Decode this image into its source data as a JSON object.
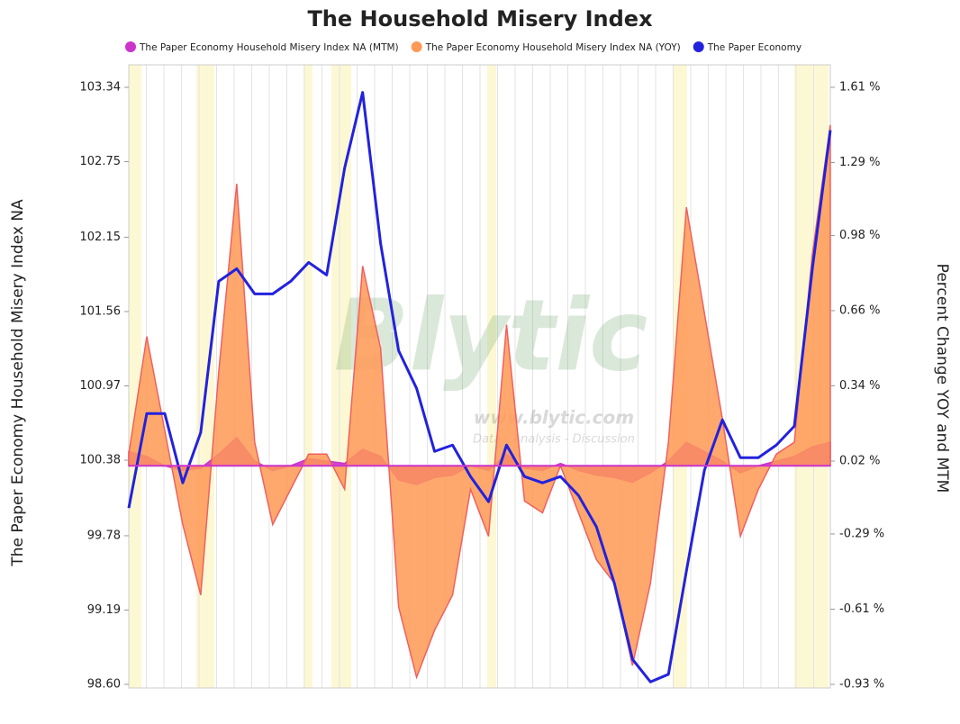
{
  "chart_data": {
    "type": "combo",
    "title": "The Household Misery Index",
    "y_label": "The Paper Economy Household Misery Index NA",
    "y2_label": "Percent Change YOY and MTM",
    "watermark": {
      "name": "Blytic",
      "url": "www.blytic.com",
      "tagline": "Data - Analysis - Discussion"
    },
    "categories": [
      null,
      null,
      null,
      null,
      null,
      null,
      null,
      null,
      null,
      null,
      null,
      null,
      null,
      null,
      null,
      null,
      null,
      null,
      null,
      null,
      null,
      null,
      null,
      null,
      null,
      null,
      null,
      null,
      null,
      null,
      null,
      null,
      null,
      null,
      null,
      null,
      null,
      null,
      null,
      null
    ],
    "ylim": [
      98.6,
      103.34
    ],
    "yticks": [
      {
        "value": 98.6,
        "label": "98.60"
      },
      99.19,
      99.78,
      100.38,
      100.97,
      101.56,
      102.15,
      102.75,
      103.34
    ],
    "y2lim": [
      -0.93,
      1.61
    ],
    "y2ticks": [
      {
        "value": -0.93,
        "label": "-0.93 %"
      },
      {
        "value": -0.61,
        "label": "-0.61 %"
      },
      {
        "value": -0.29,
        "label": "-0.29 %"
      },
      {
        "value": 0.02,
        "label": "0.02 %"
      },
      {
        "value": 0.34,
        "label": "0.34 %"
      },
      {
        "value": 0.66,
        "label": "0.66 %"
      },
      {
        "value": 0.98,
        "label": "0.98 %"
      },
      {
        "value": 1.29,
        "label": "1.29 %"
      },
      {
        "value": 1.61,
        "label": "1.61 %"
      }
    ],
    "legend": "top",
    "series": [
      {
        "name": "The Paper Economy Household Misery Index NA (MTM)",
        "color": "#cc33cc",
        "kind": "area",
        "axis": "y2",
        "values": [
          0.06,
          0.04,
          0.0,
          -0.02,
          -0.01,
          0.05,
          0.12,
          0.02,
          -0.02,
          0.0,
          0.03,
          0.02,
          0.01,
          0.07,
          0.04,
          -0.06,
          -0.08,
          -0.05,
          -0.04,
          0.0,
          -0.02,
          0.05,
          -0.01,
          -0.02,
          0.01,
          -0.02,
          -0.04,
          -0.05,
          -0.07,
          -0.03,
          0.02,
          0.1,
          0.06,
          0.02,
          -0.03,
          0.0,
          0.02,
          0.04,
          0.08,
          0.1
        ]
      },
      {
        "name": "The Paper Economy Household Misery Index NA (YOY)",
        "color": "#ff9955",
        "kind": "area",
        "axis": "y2",
        "values": [
          0.05,
          0.55,
          0.15,
          -0.25,
          -0.55,
          0.4,
          1.2,
          0.1,
          -0.25,
          -0.1,
          0.05,
          0.05,
          -0.1,
          0.85,
          0.5,
          -0.6,
          -0.9,
          -0.7,
          -0.55,
          -0.1,
          -0.3,
          0.6,
          -0.15,
          -0.2,
          0.0,
          -0.2,
          -0.4,
          -0.5,
          -0.85,
          -0.5,
          0.1,
          1.1,
          0.65,
          0.2,
          -0.3,
          -0.1,
          0.05,
          0.1,
          0.9,
          1.45
        ]
      },
      {
        "name": "The Paper Economy",
        "color": "#2222dd",
        "kind": "line",
        "axis": "y",
        "values": [
          100.0,
          100.75,
          100.75,
          100.2,
          100.6,
          101.8,
          101.9,
          101.7,
          101.7,
          101.8,
          101.95,
          101.85,
          102.7,
          103.3,
          102.1,
          101.25,
          100.95,
          100.45,
          100.5,
          100.25,
          100.05,
          100.5,
          100.25,
          100.2,
          100.25,
          100.1,
          99.85,
          99.4,
          98.8,
          98.62,
          98.68,
          99.5,
          100.3,
          100.7,
          100.4,
          100.4,
          100.5,
          100.65,
          101.9,
          103.0
        ]
      }
    ]
  }
}
